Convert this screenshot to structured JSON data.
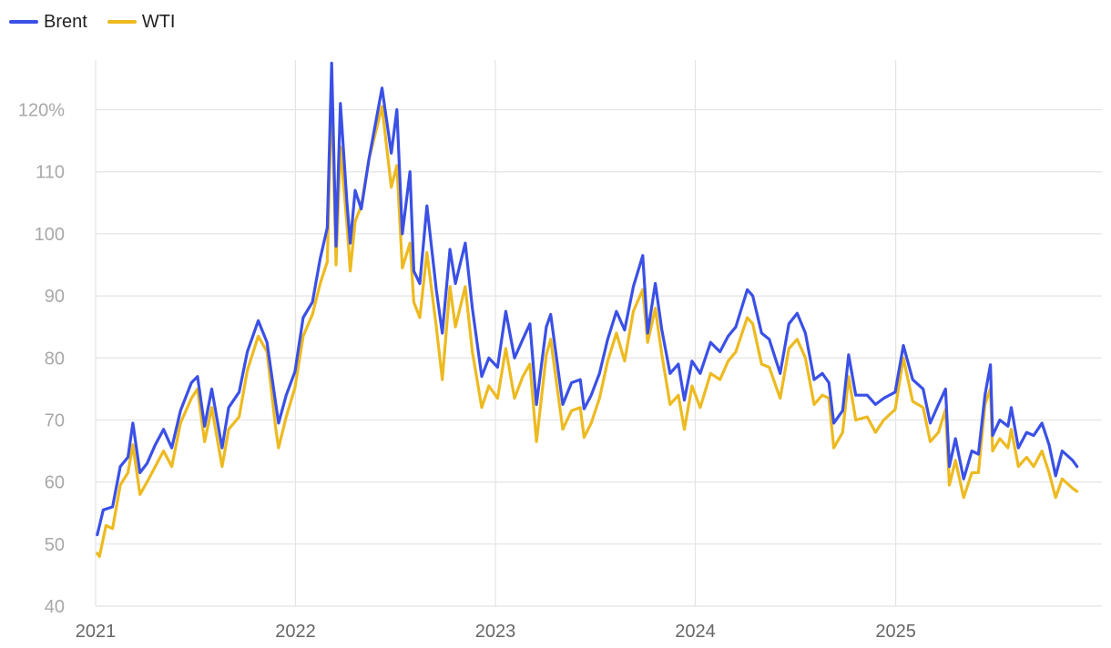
{
  "chart_data": {
    "type": "line",
    "title": "",
    "xlabel": "",
    "ylabel": "",
    "legend_position": "top-left",
    "grid": true,
    "ylim": [
      40,
      128
    ],
    "y_ticks": [
      {
        "value": 40,
        "label": "40"
      },
      {
        "value": 50,
        "label": "50"
      },
      {
        "value": 60,
        "label": "60"
      },
      {
        "value": 70,
        "label": "70"
      },
      {
        "value": 80,
        "label": "80"
      },
      {
        "value": 90,
        "label": "90"
      },
      {
        "value": 100,
        "label": "100"
      },
      {
        "value": 110,
        "label": "110"
      },
      {
        "value": 120,
        "label": "120%"
      }
    ],
    "x_ticks": [
      {
        "value": "2021-01-01",
        "label": "2021"
      },
      {
        "value": "2022-01-01",
        "label": "2022"
      },
      {
        "value": "2023-01-01",
        "label": "2023"
      },
      {
        "value": "2024-01-01",
        "label": "2024"
      },
      {
        "value": "2025-01-01",
        "label": "2025"
      }
    ],
    "x_range": [
      "2021-01-01",
      "2025-12-31"
    ],
    "series": [
      {
        "name": "Brent",
        "color": "#3A50E6",
        "points": [
          [
            "2021-01-04",
            51.5
          ],
          [
            "2021-01-15",
            55.5
          ],
          [
            "2021-02-01",
            56.0
          ],
          [
            "2021-02-15",
            62.5
          ],
          [
            "2021-03-01",
            64.0
          ],
          [
            "2021-03-10",
            69.5
          ],
          [
            "2021-03-23",
            61.5
          ],
          [
            "2021-04-05",
            63.0
          ],
          [
            "2021-04-20",
            66.0
          ],
          [
            "2021-05-05",
            68.5
          ],
          [
            "2021-05-20",
            65.5
          ],
          [
            "2021-06-05",
            71.5
          ],
          [
            "2021-06-25",
            76.0
          ],
          [
            "2021-07-06",
            77.0
          ],
          [
            "2021-07-19",
            69.0
          ],
          [
            "2021-08-01",
            75.0
          ],
          [
            "2021-08-20",
            65.5
          ],
          [
            "2021-09-01",
            72.0
          ],
          [
            "2021-09-20",
            74.5
          ],
          [
            "2021-10-05",
            81.0
          ],
          [
            "2021-10-25",
            86.0
          ],
          [
            "2021-11-10",
            82.5
          ],
          [
            "2021-11-26",
            72.5
          ],
          [
            "2021-12-01",
            69.5
          ],
          [
            "2021-12-15",
            74.0
          ],
          [
            "2021-12-31",
            77.8
          ],
          [
            "2022-01-15",
            86.5
          ],
          [
            "2022-02-01",
            89.0
          ],
          [
            "2022-02-15",
            96.0
          ],
          [
            "2022-02-28",
            101.0
          ],
          [
            "2022-03-08",
            127.5
          ],
          [
            "2022-03-16",
            98.0
          ],
          [
            "2022-03-24",
            121.0
          ],
          [
            "2022-04-05",
            105.0
          ],
          [
            "2022-04-11",
            98.5
          ],
          [
            "2022-04-20",
            107.0
          ],
          [
            "2022-05-01",
            104.0
          ],
          [
            "2022-05-15",
            112.0
          ],
          [
            "2022-06-08",
            123.5
          ],
          [
            "2022-06-25",
            113.0
          ],
          [
            "2022-07-05",
            120.0
          ],
          [
            "2022-07-15",
            100.0
          ],
          [
            "2022-07-29",
            110.0
          ],
          [
            "2022-08-05",
            94.0
          ],
          [
            "2022-08-16",
            92.0
          ],
          [
            "2022-08-29",
            104.5
          ],
          [
            "2022-09-15",
            91.0
          ],
          [
            "2022-09-26",
            84.0
          ],
          [
            "2022-10-10",
            97.5
          ],
          [
            "2022-10-20",
            92.0
          ],
          [
            "2022-11-07",
            98.5
          ],
          [
            "2022-11-20",
            88.0
          ],
          [
            "2022-12-07",
            77.0
          ],
          [
            "2022-12-20",
            80.0
          ],
          [
            "2023-01-05",
            78.5
          ],
          [
            "2023-01-20",
            87.5
          ],
          [
            "2023-02-05",
            80.0
          ],
          [
            "2023-02-20",
            83.0
          ],
          [
            "2023-03-05",
            85.5
          ],
          [
            "2023-03-17",
            72.5
          ],
          [
            "2023-04-04",
            85.0
          ],
          [
            "2023-04-12",
            87.0
          ],
          [
            "2023-05-04",
            72.5
          ],
          [
            "2023-05-20",
            76.0
          ],
          [
            "2023-06-05",
            76.5
          ],
          [
            "2023-06-12",
            71.8
          ],
          [
            "2023-06-25",
            74.0
          ],
          [
            "2023-07-10",
            77.5
          ],
          [
            "2023-07-25",
            83.0
          ],
          [
            "2023-08-10",
            87.5
          ],
          [
            "2023-08-25",
            84.5
          ],
          [
            "2023-09-10",
            91.5
          ],
          [
            "2023-09-27",
            96.5
          ],
          [
            "2023-10-06",
            84.0
          ],
          [
            "2023-10-20",
            92.0
          ],
          [
            "2023-11-01",
            84.5
          ],
          [
            "2023-11-16",
            77.5
          ],
          [
            "2023-12-01",
            79.0
          ],
          [
            "2023-12-12",
            73.2
          ],
          [
            "2023-12-26",
            79.5
          ],
          [
            "2024-01-10",
            77.5
          ],
          [
            "2024-01-29",
            82.5
          ],
          [
            "2024-02-15",
            81.0
          ],
          [
            "2024-03-01",
            83.5
          ],
          [
            "2024-03-15",
            85.0
          ],
          [
            "2024-04-05",
            91.0
          ],
          [
            "2024-04-15",
            90.0
          ],
          [
            "2024-05-01",
            84.0
          ],
          [
            "2024-05-15",
            83.0
          ],
          [
            "2024-06-04",
            77.5
          ],
          [
            "2024-06-20",
            85.5
          ],
          [
            "2024-07-05",
            87.2
          ],
          [
            "2024-07-20",
            84.0
          ],
          [
            "2024-08-05",
            76.5
          ],
          [
            "2024-08-20",
            77.5
          ],
          [
            "2024-09-01",
            76.0
          ],
          [
            "2024-09-10",
            69.5
          ],
          [
            "2024-09-26",
            71.5
          ],
          [
            "2024-10-07",
            80.5
          ],
          [
            "2024-10-20",
            74.0
          ],
          [
            "2024-11-10",
            74.0
          ],
          [
            "2024-11-25",
            72.5
          ],
          [
            "2024-12-10",
            73.5
          ],
          [
            "2024-12-31",
            74.5
          ],
          [
            "2025-01-15",
            82.0
          ],
          [
            "2025-02-01",
            76.5
          ],
          [
            "2025-02-20",
            75.0
          ],
          [
            "2025-03-05",
            69.5
          ],
          [
            "2025-03-20",
            72.5
          ],
          [
            "2025-04-02",
            75.0
          ],
          [
            "2025-04-09",
            62.5
          ],
          [
            "2025-04-20",
            67.0
          ],
          [
            "2025-05-05",
            60.5
          ],
          [
            "2025-05-20",
            65.0
          ],
          [
            "2025-06-01",
            64.5
          ],
          [
            "2025-06-13",
            74.0
          ],
          [
            "2025-06-23",
            78.9
          ],
          [
            "2025-06-27",
            67.5
          ],
          [
            "2025-07-10",
            70.0
          ],
          [
            "2025-07-25",
            69.0
          ],
          [
            "2025-07-31",
            72.0
          ],
          [
            "2025-08-13",
            65.5
          ],
          [
            "2025-08-28",
            68.0
          ],
          [
            "2025-09-10",
            67.5
          ],
          [
            "2025-09-25",
            69.5
          ],
          [
            "2025-10-08",
            66.0
          ],
          [
            "2025-10-20",
            61.0
          ],
          [
            "2025-11-01",
            65.0
          ],
          [
            "2025-11-20",
            63.5
          ],
          [
            "2025-11-28",
            62.5
          ]
        ]
      },
      {
        "name": "WTI",
        "color": "#EDBA20",
        "points": [
          [
            "2021-01-04",
            48.5
          ],
          [
            "2021-01-08",
            48.0
          ],
          [
            "2021-01-20",
            53.0
          ],
          [
            "2021-02-01",
            52.5
          ],
          [
            "2021-02-15",
            59.5
          ],
          [
            "2021-03-01",
            61.5
          ],
          [
            "2021-03-10",
            66.0
          ],
          [
            "2021-03-23",
            58.0
          ],
          [
            "2021-04-05",
            60.0
          ],
          [
            "2021-04-20",
            62.5
          ],
          [
            "2021-05-05",
            65.0
          ],
          [
            "2021-05-20",
            62.5
          ],
          [
            "2021-06-05",
            69.5
          ],
          [
            "2021-06-25",
            73.5
          ],
          [
            "2021-07-06",
            75.0
          ],
          [
            "2021-07-19",
            66.5
          ],
          [
            "2021-08-01",
            72.0
          ],
          [
            "2021-08-20",
            62.5
          ],
          [
            "2021-09-01",
            68.5
          ],
          [
            "2021-09-20",
            70.5
          ],
          [
            "2021-10-05",
            78.0
          ],
          [
            "2021-10-25",
            83.5
          ],
          [
            "2021-11-10",
            81.0
          ],
          [
            "2021-11-26",
            68.5
          ],
          [
            "2021-12-01",
            65.5
          ],
          [
            "2021-12-15",
            70.5
          ],
          [
            "2021-12-31",
            75.2
          ],
          [
            "2022-01-15",
            83.5
          ],
          [
            "2022-02-01",
            87.0
          ],
          [
            "2022-02-15",
            92.0
          ],
          [
            "2022-02-28",
            95.5
          ],
          [
            "2022-03-08",
            123.5
          ],
          [
            "2022-03-16",
            95.0
          ],
          [
            "2022-03-24",
            114.0
          ],
          [
            "2022-04-05",
            101.5
          ],
          [
            "2022-04-11",
            94.0
          ],
          [
            "2022-04-20",
            102.0
          ],
          [
            "2022-05-01",
            104.5
          ],
          [
            "2022-05-15",
            112.0
          ],
          [
            "2022-06-08",
            120.5
          ],
          [
            "2022-06-25",
            107.5
          ],
          [
            "2022-07-05",
            111.0
          ],
          [
            "2022-07-15",
            94.5
          ],
          [
            "2022-07-29",
            98.5
          ],
          [
            "2022-08-05",
            89.0
          ],
          [
            "2022-08-16",
            86.5
          ],
          [
            "2022-08-29",
            97.0
          ],
          [
            "2022-09-15",
            85.0
          ],
          [
            "2022-09-26",
            76.5
          ],
          [
            "2022-10-10",
            91.5
          ],
          [
            "2022-10-20",
            85.0
          ],
          [
            "2022-11-07",
            91.5
          ],
          [
            "2022-11-20",
            81.0
          ],
          [
            "2022-12-07",
            72.0
          ],
          [
            "2022-12-20",
            75.5
          ],
          [
            "2023-01-05",
            73.5
          ],
          [
            "2023-01-20",
            81.5
          ],
          [
            "2023-02-05",
            73.5
          ],
          [
            "2023-02-20",
            77.0
          ],
          [
            "2023-03-05",
            79.0
          ],
          [
            "2023-03-17",
            66.5
          ],
          [
            "2023-04-04",
            80.5
          ],
          [
            "2023-04-12",
            83.0
          ],
          [
            "2023-05-04",
            68.5
          ],
          [
            "2023-05-20",
            71.5
          ],
          [
            "2023-06-05",
            72.0
          ],
          [
            "2023-06-12",
            67.2
          ],
          [
            "2023-06-25",
            69.5
          ],
          [
            "2023-07-10",
            73.5
          ],
          [
            "2023-07-25",
            79.5
          ],
          [
            "2023-08-10",
            84.0
          ],
          [
            "2023-08-25",
            79.5
          ],
          [
            "2023-09-10",
            87.5
          ],
          [
            "2023-09-27",
            91.0
          ],
          [
            "2023-10-06",
            82.5
          ],
          [
            "2023-10-20",
            88.0
          ],
          [
            "2023-11-01",
            80.5
          ],
          [
            "2023-11-16",
            72.5
          ],
          [
            "2023-12-01",
            74.0
          ],
          [
            "2023-12-12",
            68.5
          ],
          [
            "2023-12-26",
            75.5
          ],
          [
            "2024-01-10",
            72.0
          ],
          [
            "2024-01-29",
            77.5
          ],
          [
            "2024-02-15",
            76.5
          ],
          [
            "2024-03-01",
            79.5
          ],
          [
            "2024-03-15",
            81.0
          ],
          [
            "2024-04-05",
            86.5
          ],
          [
            "2024-04-15",
            85.5
          ],
          [
            "2024-05-01",
            79.0
          ],
          [
            "2024-05-15",
            78.5
          ],
          [
            "2024-06-04",
            73.5
          ],
          [
            "2024-06-20",
            81.5
          ],
          [
            "2024-07-05",
            83.0
          ],
          [
            "2024-07-20",
            80.0
          ],
          [
            "2024-08-05",
            72.5
          ],
          [
            "2024-08-20",
            74.0
          ],
          [
            "2024-09-01",
            73.5
          ],
          [
            "2024-09-10",
            65.5
          ],
          [
            "2024-09-26",
            68.0
          ],
          [
            "2024-10-07",
            77.0
          ],
          [
            "2024-10-20",
            70.0
          ],
          [
            "2024-11-10",
            70.5
          ],
          [
            "2024-11-25",
            68.0
          ],
          [
            "2024-12-10",
            70.0
          ],
          [
            "2024-12-31",
            71.7
          ],
          [
            "2025-01-15",
            80.0
          ],
          [
            "2025-02-01",
            73.0
          ],
          [
            "2025-02-20",
            72.0
          ],
          [
            "2025-03-05",
            66.5
          ],
          [
            "2025-03-20",
            68.0
          ],
          [
            "2025-04-02",
            71.7
          ],
          [
            "2025-04-09",
            59.5
          ],
          [
            "2025-04-20",
            63.5
          ],
          [
            "2025-05-05",
            57.5
          ],
          [
            "2025-05-20",
            61.5
          ],
          [
            "2025-06-01",
            61.5
          ],
          [
            "2025-06-13",
            72.5
          ],
          [
            "2025-06-23",
            75.0
          ],
          [
            "2025-06-27",
            65.0
          ],
          [
            "2025-07-10",
            67.0
          ],
          [
            "2025-07-25",
            65.5
          ],
          [
            "2025-07-31",
            68.5
          ],
          [
            "2025-08-13",
            62.5
          ],
          [
            "2025-08-28",
            64.0
          ],
          [
            "2025-09-10",
            62.5
          ],
          [
            "2025-09-25",
            65.0
          ],
          [
            "2025-10-08",
            61.5
          ],
          [
            "2025-10-20",
            57.5
          ],
          [
            "2025-11-01",
            60.5
          ],
          [
            "2025-11-20",
            59.0
          ],
          [
            "2025-11-28",
            58.5
          ]
        ]
      }
    ]
  }
}
